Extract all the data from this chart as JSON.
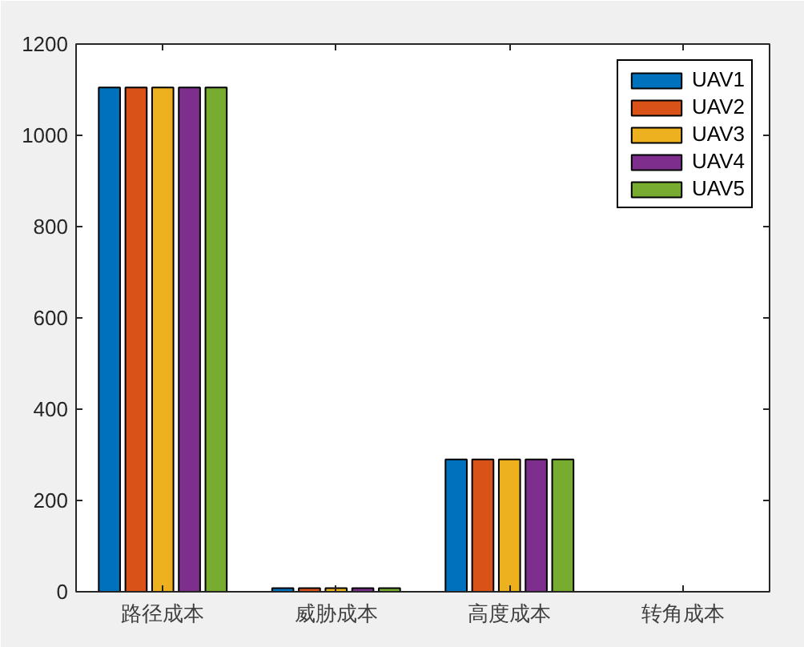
{
  "chart_data": {
    "type": "bar",
    "categories": [
      "路径成本",
      "威胁成本",
      "高度成本",
      "转角成本"
    ],
    "series": [
      {
        "name": "UAV1",
        "color": "#0072bd",
        "values": [
          1105,
          8,
          290,
          0
        ]
      },
      {
        "name": "UAV2",
        "color": "#d95319",
        "values": [
          1105,
          8,
          290,
          0
        ]
      },
      {
        "name": "UAV3",
        "color": "#edb120",
        "values": [
          1105,
          8,
          290,
          0
        ]
      },
      {
        "name": "UAV4",
        "color": "#7e2f8e",
        "values": [
          1105,
          8,
          290,
          0
        ]
      },
      {
        "name": "UAV5",
        "color": "#77ac30",
        "values": [
          1105,
          8,
          290,
          0
        ]
      }
    ],
    "ylim": [
      0,
      1200
    ],
    "yticks": [
      0,
      200,
      400,
      600,
      800,
      1000,
      1200
    ],
    "legend": "top right",
    "grid": false
  }
}
